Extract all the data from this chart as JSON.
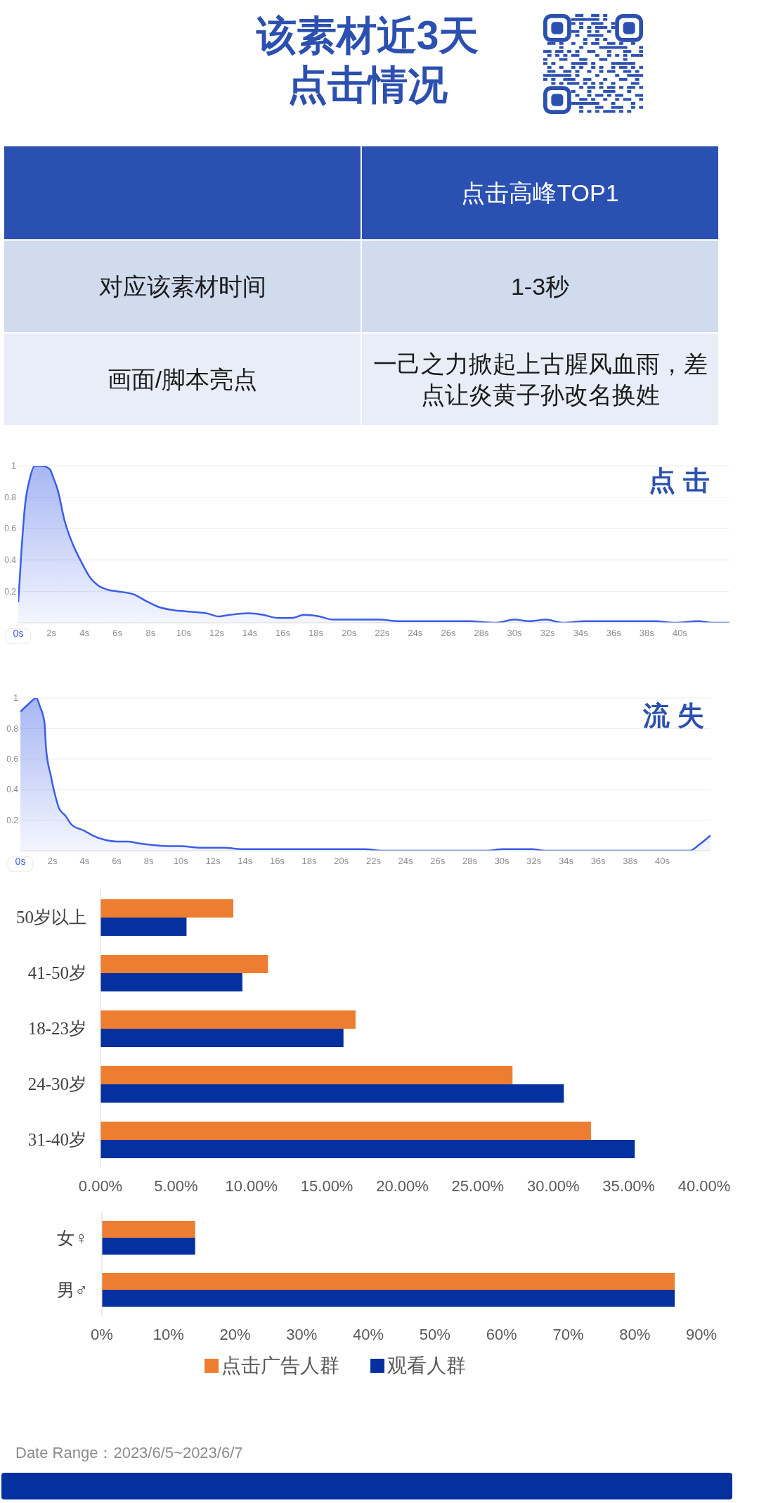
{
  "chart_data": [
    {
      "type": "other",
      "title": "该素材近3天点击情况",
      "categories": [
        null,
        "点击高峰TOP1"
      ],
      "y_categories": [
        "对应该素材时间",
        "画面/脚本亮点"
      ],
      "cell_labels": [
        [
          "1-3秒"
        ],
        [
          "一己之力掀起上古腥风血雨，差点让炎黄子孙改名换姓"
        ]
      ]
    },
    {
      "type": "area",
      "title": "点击",
      "color": "#3b5ee6",
      "grid": "y",
      "xlim": [
        0,
        43
      ],
      "ylim": [
        0,
        1
      ],
      "xticks": [
        {
          "value": 0,
          "label": "0s"
        },
        {
          "value": 2,
          "label": "2s"
        },
        {
          "value": 4,
          "label": "4s"
        },
        {
          "value": 6,
          "label": "6s"
        },
        {
          "value": 8,
          "label": "8s"
        },
        {
          "value": 10,
          "label": "10s"
        },
        {
          "value": 12,
          "label": "12s"
        },
        {
          "value": 14,
          "label": "14s"
        },
        {
          "value": 16,
          "label": "16s"
        },
        {
          "value": 18,
          "label": "18s"
        },
        {
          "value": 20,
          "label": "20s"
        },
        {
          "value": 22,
          "label": "22s"
        },
        {
          "value": 24,
          "label": "24s"
        },
        {
          "value": 26,
          "label": "26s"
        },
        {
          "value": 28,
          "label": "28s"
        },
        {
          "value": 30,
          "label": "30s"
        },
        {
          "value": 32,
          "label": "32s"
        },
        {
          "value": 34,
          "label": "34s"
        },
        {
          "value": 36,
          "label": "36s"
        },
        {
          "value": 38,
          "label": "38s"
        },
        {
          "value": 40,
          "label": "40s"
        }
      ],
      "yticks": [
        0.2,
        0.4,
        0.6,
        0.8,
        1
      ],
      "x": [
        0,
        0.2,
        0.4,
        0.7,
        1,
        1.4,
        1.9,
        2.1,
        2.4,
        2.8,
        3.3,
        3.8,
        4.4,
        4.8,
        5.4,
        6,
        7,
        7.7,
        8.5,
        9.4,
        10.5,
        11.4,
        12.1,
        12.8,
        13.9,
        14.8,
        15.7,
        16.5,
        17.3,
        18.2,
        19,
        20.4,
        21.8,
        23,
        27.2,
        28.9,
        30,
        30.9,
        31.9,
        32.9,
        34.3,
        38.5,
        39.7,
        41.1,
        42,
        43
      ],
      "values": [
        0.13,
        0.47,
        0.74,
        0.92,
        1,
        1,
        0.98,
        0.93,
        0.84,
        0.65,
        0.5,
        0.39,
        0.28,
        0.24,
        0.21,
        0.2,
        0.18,
        0.14,
        0.1,
        0.08,
        0.07,
        0.06,
        0.04,
        0.05,
        0.06,
        0.05,
        0.03,
        0.03,
        0.05,
        0.04,
        0.02,
        0.02,
        0.02,
        0.01,
        0.01,
        0,
        0.02,
        0.01,
        0.02,
        0,
        0.01,
        0.01,
        0,
        0.01,
        0,
        0
      ]
    },
    {
      "type": "area",
      "title": "流失",
      "color": "#3b5ee6",
      "grid": "y",
      "xlim": [
        0,
        43
      ],
      "ylim": [
        0,
        1
      ],
      "xticks": [
        {
          "value": 0,
          "label": "0s"
        },
        {
          "value": 2,
          "label": "2s"
        },
        {
          "value": 4,
          "label": "4s"
        },
        {
          "value": 6,
          "label": "6s"
        },
        {
          "value": 8,
          "label": "8s"
        },
        {
          "value": 10,
          "label": "10s"
        },
        {
          "value": 12,
          "label": "12s"
        },
        {
          "value": 14,
          "label": "14s"
        },
        {
          "value": 16,
          "label": "16s"
        },
        {
          "value": 18,
          "label": "18s"
        },
        {
          "value": 20,
          "label": "20s"
        },
        {
          "value": 22,
          "label": "22s"
        },
        {
          "value": 24,
          "label": "24s"
        },
        {
          "value": 26,
          "label": "26s"
        },
        {
          "value": 28,
          "label": "28s"
        },
        {
          "value": 30,
          "label": "30s"
        },
        {
          "value": 32,
          "label": "32s"
        },
        {
          "value": 34,
          "label": "34s"
        },
        {
          "value": 36,
          "label": "36s"
        },
        {
          "value": 38,
          "label": "38s"
        },
        {
          "value": 40,
          "label": "40s"
        }
      ],
      "yticks": [
        0.2,
        0.4,
        0.6,
        0.8,
        1
      ],
      "x": [
        0,
        0.5,
        1,
        1.2,
        1.5,
        1.6,
        1.9,
        2.2,
        2.4,
        2.8,
        3.2,
        4,
        4.5,
        5.3,
        6,
        6.7,
        7.3,
        8,
        9.2,
        10,
        11.1,
        12.7,
        13.8,
        21.4,
        22.6,
        29,
        30.1,
        31.9,
        32.7,
        41.7,
        42.3,
        43
      ],
      "values": [
        0.91,
        0.96,
        1,
        0.95,
        0.84,
        0.67,
        0.49,
        0.35,
        0.28,
        0.23,
        0.17,
        0.13,
        0.1,
        0.07,
        0.06,
        0.06,
        0.05,
        0.04,
        0.03,
        0.03,
        0.02,
        0.02,
        0.01,
        0.01,
        0,
        0,
        0.01,
        0.01,
        0,
        0,
        0.04,
        0.1
      ]
    },
    {
      "type": "bar",
      "orientation": "horizontal",
      "categories": [
        "50岁以上",
        "41-50岁",
        "18-23岁",
        "24-30岁",
        "31-40岁"
      ],
      "series": [
        {
          "color": "#ed7d31",
          "values": [
            8.8,
            11.1,
            16.9,
            27.3,
            32.5
          ]
        },
        {
          "color": "#0530a0",
          "values": [
            5.7,
            9.4,
            16.1,
            30.7,
            35.4
          ]
        }
      ],
      "xlim": [
        0,
        40
      ],
      "xticks": [
        {
          "value": 0,
          "label": "0.00%"
        },
        {
          "value": 5,
          "label": "5.00%"
        },
        {
          "value": 10,
          "label": "10.00%"
        },
        {
          "value": 15,
          "label": "15.00%"
        },
        {
          "value": 20,
          "label": "20.00%"
        },
        {
          "value": 25,
          "label": "25.00%"
        },
        {
          "value": 30,
          "label": "30.00%"
        },
        {
          "value": 35,
          "label": "35.00%"
        },
        {
          "value": 40,
          "label": "40.00%"
        }
      ]
    },
    {
      "type": "bar",
      "orientation": "horizontal",
      "categories": [
        "女♀",
        "男♂"
      ],
      "series": [
        {
          "name": "点击广告人群",
          "color": "#ed7d31",
          "values": [
            14,
            86
          ]
        },
        {
          "name": "观看人群",
          "color": "#0530a0",
          "values": [
            14,
            86
          ]
        }
      ],
      "xlim": [
        0,
        90
      ],
      "xticks": [
        {
          "value": 0,
          "label": "0%"
        },
        {
          "value": 10,
          "label": "10%"
        },
        {
          "value": 20,
          "label": "20%"
        },
        {
          "value": 30,
          "label": "30%"
        },
        {
          "value": 40,
          "label": "40%"
        },
        {
          "value": 50,
          "label": "50%"
        },
        {
          "value": 60,
          "label": "60%"
        },
        {
          "value": 70,
          "label": "70%"
        },
        {
          "value": 80,
          "label": "80%"
        },
        {
          "value": 90,
          "label": "90%"
        }
      ],
      "legend": "bottom",
      "annotations": [
        "Date Range：2023/6/5~2023/6/7"
      ]
    }
  ]
}
